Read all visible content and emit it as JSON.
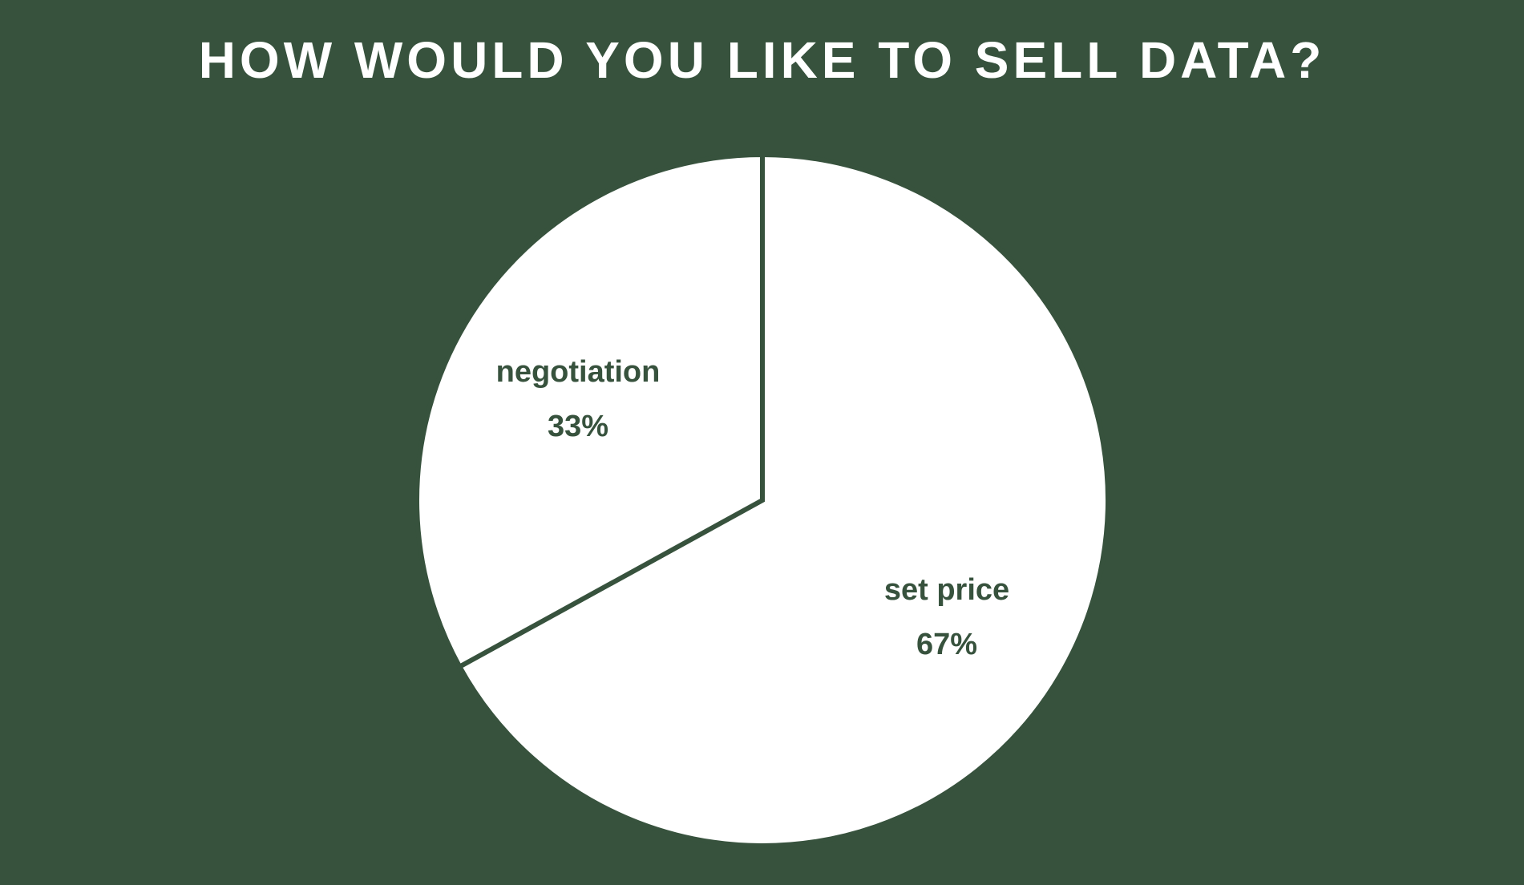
{
  "chart_data": {
    "type": "pie",
    "title": "HOW WOULD YOU LIKE TO SELL DATA?",
    "slices": [
      {
        "label": "set price",
        "value": 67,
        "value_label": "67%",
        "color": "#ffffff"
      },
      {
        "label": "negotiation",
        "value": 33,
        "value_label": "33%",
        "color": "#ffffff"
      }
    ],
    "start_angle": "12 o'clock",
    "direction": "clockwise",
    "slice_border_color": "#37523d",
    "background_color": "#37523d",
    "label_color": "#37523d",
    "legend": "none"
  }
}
